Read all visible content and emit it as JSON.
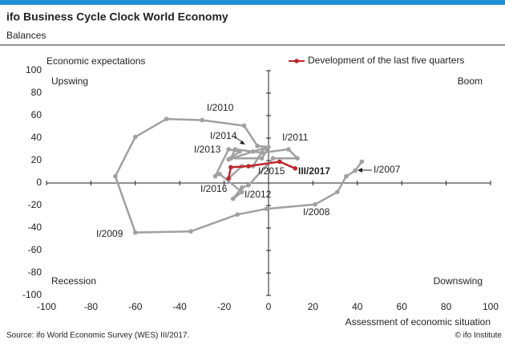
{
  "chart_data": {
    "type": "line",
    "title": "ifo Business Cycle Clock World Economy",
    "subtitle": "Balances",
    "y_label": "Economic expectations",
    "x_label": "Assessment of economic situation",
    "quadrants": [
      "Upswing",
      "Boom",
      "Recession",
      "Downswing"
    ],
    "source": "Source: ifo World Economic Survey (WES) III/2017.",
    "copyright": "© ifo Institute",
    "xlim": [
      -100,
      100
    ],
    "ylim": [
      -100,
      100
    ],
    "xticks": [
      -100,
      -80,
      -60,
      -40,
      -20,
      0,
      20,
      40,
      60,
      80,
      100
    ],
    "yticks": [
      -100,
      -80,
      -60,
      -40,
      -20,
      0,
      20,
      40,
      60,
      80,
      100
    ],
    "series": [
      {
        "color": "#a0a0a0",
        "x": [
          42,
          39,
          35,
          31,
          21,
          -1,
          -14,
          -35,
          -60,
          -69,
          -60,
          -46,
          -30,
          -11,
          -5,
          0,
          -3,
          -17,
          -15,
          -3,
          9,
          13,
          2,
          -9,
          -12,
          -16,
          -12,
          -22,
          -24,
          -18,
          -13,
          -18,
          -7,
          -2,
          -7,
          -12,
          -18
        ],
        "values": [
          19,
          11,
          6,
          -8,
          -19,
          -23,
          -28,
          -43,
          -44,
          6,
          41,
          57,
          56,
          51,
          33,
          32,
          22,
          22,
          30,
          27,
          30,
          22,
          22,
          -2,
          -4,
          -14,
          -8,
          8,
          6,
          30,
          28,
          21,
          28,
          31,
          15,
          15,
          4
        ]
      },
      {
        "name": "Development of the last five quarters",
        "color": "#c0272d",
        "x": [
          -18,
          -17,
          -9,
          5,
          12
        ],
        "values": [
          4,
          14,
          15,
          19,
          13
        ]
      }
    ],
    "annotations": [
      "I/2010",
      "I/2014",
      "I/2013",
      "I/2011",
      "I/2015",
      "III/2017",
      "I/2007",
      "I/2016",
      "I/2012",
      "I/2008",
      "I/2009"
    ]
  }
}
